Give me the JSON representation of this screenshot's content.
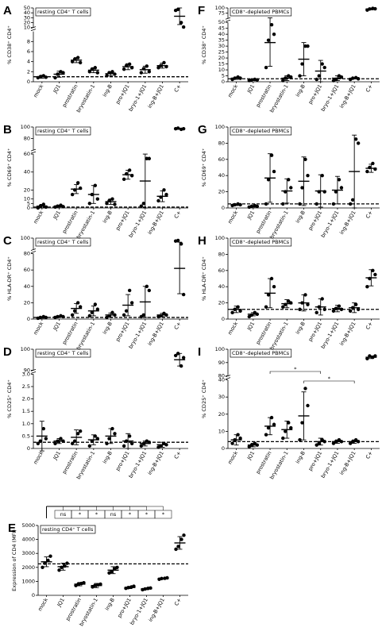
{
  "chart_data": [
    {
      "type": "dotplot",
      "label": "A",
      "title": "resting CD4⁺ T cells",
      "ylabel": "% CD38⁺ CD4⁺",
      "categories": [
        "mock",
        "JQ1",
        "prostratin",
        "bryostatin-1",
        "ing-B",
        "pro+JQ1",
        "bryo-1+JQ1",
        "ing-B+JQ1",
        "C+"
      ],
      "points": [
        [
          0.8,
          1,
          1.2,
          0.9
        ],
        [
          0.8,
          1.5,
          2,
          1.8
        ],
        [
          4,
          4.5,
          4.8,
          3.8
        ],
        [
          2,
          2.5,
          2.8,
          1.8
        ],
        [
          1.2,
          1.8,
          2,
          1.5
        ],
        [
          2.5,
          3.2,
          3.5,
          2.8
        ],
        [
          1.8,
          2.6,
          3.1,
          2
        ],
        [
          2.8,
          3.2,
          3.8,
          3
        ],
        [
          45,
          47,
          20,
          11
        ]
      ],
      "mean": [
        1,
        1.5,
        4.3,
        2.3,
        1.6,
        3,
        2.4,
        3.2,
        33
      ],
      "sd": [
        0.3,
        0.6,
        0.5,
        0.5,
        0.4,
        0.6,
        0.7,
        0.5,
        17
      ],
      "reference": 1,
      "segments": [
        {
          "ylim": [
            0,
            10
          ],
          "yticks": [
            0,
            2,
            4,
            6,
            8
          ]
        },
        {
          "ylim": [
            10,
            50
          ],
          "yticks": [
            10,
            20,
            30,
            40,
            50
          ]
        }
      ]
    },
    {
      "type": "dotplot",
      "label": "B",
      "title": "resting CD4⁺ T cells",
      "ylabel": "% CD69⁺ CD4⁺",
      "categories": [
        "mock",
        "JQ1",
        "prostratin",
        "bryostatin-1",
        "ing-B",
        "pro+JQ1",
        "bryo-1+JQ1",
        "ing-B+JQ1",
        "C+"
      ],
      "points": [
        [
          0,
          2,
          4,
          1
        ],
        [
          1,
          2,
          3,
          1.5
        ],
        [
          15,
          20,
          28,
          22
        ],
        [
          5,
          15,
          25,
          10
        ],
        [
          5,
          8,
          10,
          4
        ],
        [
          32,
          38,
          42,
          36
        ],
        [
          2,
          5,
          55,
          55
        ],
        [
          8,
          12,
          20,
          15
        ],
        [
          97,
          98,
          96,
          97
        ]
      ],
      "mean": [
        2,
        2,
        21,
        15,
        7,
        37,
        30,
        13,
        97
      ],
      "sd": [
        2,
        1,
        5,
        10,
        3,
        5,
        30,
        6,
        1
      ],
      "reference": 1,
      "segments": [
        {
          "ylim": [
            0,
            60
          ],
          "yticks": [
            0,
            5,
            10,
            20,
            40,
            60
          ]
        },
        {
          "ylim": [
            60,
            100
          ],
          "yticks": [
            80,
            100
          ]
        }
      ]
    },
    {
      "type": "dotplot",
      "label": "C",
      "title": "resting CD4⁺ T cells",
      "ylabel": "% HLA-DR⁺ CD4⁺",
      "categories": [
        "mock",
        "JQ1",
        "prostratin",
        "bryostatin-1",
        "ing-B",
        "pro+JQ1",
        "bryo-1+JQ1",
        "ing-B+JQ1",
        "C+"
      ],
      "points": [
        [
          1,
          2,
          3,
          2
        ],
        [
          2,
          3,
          4,
          3
        ],
        [
          5,
          10,
          20,
          15
        ],
        [
          4,
          8,
          18,
          12
        ],
        [
          2,
          4,
          8,
          5
        ],
        [
          5,
          10,
          35,
          20
        ],
        [
          3,
          5,
          40,
          35
        ],
        [
          3,
          4,
          7,
          5
        ],
        [
          95,
          96,
          90,
          30
        ]
      ],
      "mean": [
        2,
        3,
        13,
        10,
        5,
        17,
        21,
        5,
        62
      ],
      "sd": [
        1,
        1,
        6,
        6,
        2.5,
        13,
        19,
        2,
        31
      ],
      "reference": 2,
      "segments": [
        {
          "ylim": [
            0,
            80
          ],
          "yticks": [
            0,
            20,
            40,
            60,
            80
          ]
        },
        {
          "ylim": [
            80,
            100
          ],
          "yticks": [
            100
          ]
        }
      ]
    },
    {
      "type": "dotplot",
      "label": "D",
      "title": "resting CD4⁺ T cells",
      "ylabel": "% CD25⁺ CD4⁺",
      "categories": [
        "mock",
        "JQ1",
        "prostratin",
        "bryostatin-1",
        "ing-B",
        "pro+JQ1",
        "bryo-1+JQ1",
        "ing-B+JQ1",
        "C+"
      ],
      "points": [
        [
          0.2,
          0.3,
          0.8,
          0.4
        ],
        [
          0.2,
          0.3,
          0.4,
          0.3
        ],
        [
          0.2,
          0.3,
          0.6,
          0.7
        ],
        [
          0.1,
          0.3,
          0.5,
          0.4
        ],
        [
          0.2,
          0.4,
          0.8,
          0.6
        ],
        [
          0.1,
          0.3,
          0.5,
          0.2
        ],
        [
          0.1,
          0.2,
          0.3,
          0.25
        ],
        [
          0.05,
          0.1,
          0.2,
          0.15
        ],
        [
          97,
          98,
          92,
          96
        ]
      ],
      "mean": [
        0.5,
        0.3,
        0.45,
        0.35,
        0.5,
        0.3,
        0.2,
        0.15,
        95
      ],
      "sd": [
        0.6,
        0.1,
        0.3,
        0.2,
        0.3,
        0.3,
        0.1,
        0.1,
        3
      ],
      "reference": 0.25,
      "segments": [
        {
          "ylim": [
            0,
            3
          ],
          "yticks": [
            0,
            0.5,
            {
              "value": 1,
              "label": "1.0"
            },
            1.5,
            {
              "value": 2,
              "label": "2.0"
            },
            2.5,
            {
              "value": 3,
              "label": "3.0"
            }
          ]
        },
        {
          "ylim": [
            90,
            100
          ],
          "yticks": [
            90,
            100
          ]
        }
      ]
    },
    {
      "type": "dotplot",
      "label": "E",
      "title": "resting CD4⁺ T cells",
      "ylabel": "Expression of CD4 (MFI)",
      "categories": [
        "mock",
        "JQ1",
        "prostratin",
        "bryostatin-1",
        "ing-B",
        "pro+JQ1",
        "bryo-1+JQ1",
        "ing-B+JQ1",
        "C+"
      ],
      "points": [
        [
          2000,
          2300,
          2500,
          2800
        ],
        [
          1800,
          2000,
          2100,
          2300
        ],
        [
          700,
          800,
          850,
          900
        ],
        [
          600,
          700,
          750,
          800
        ],
        [
          1600,
          1700,
          1900,
          2000
        ],
        [
          500,
          550,
          600,
          650
        ],
        [
          400,
          450,
          500,
          520
        ],
        [
          1150,
          1200,
          1220,
          1250
        ],
        [
          3300,
          3500,
          4000,
          4300
        ]
      ],
      "mean": [
        2400,
        2050,
        800,
        700,
        1800,
        560,
        470,
        1200,
        3750
      ],
      "sd": [
        350,
        250,
        120,
        150,
        250,
        80,
        70,
        50,
        450
      ],
      "reference": 2250,
      "segments": [
        {
          "ylim": [
            0,
            5000
          ],
          "yticks": [
            0,
            1000,
            2000,
            3000,
            4000,
            5000
          ]
        }
      ],
      "annotations": [
        {
          "text": "ns",
          "category": "JQ1"
        },
        {
          "text": "*",
          "category": "prostratin"
        },
        {
          "text": "*",
          "category": "bryostatin-1"
        },
        {
          "text": "ns",
          "category": "ing-B"
        },
        {
          "text": "*",
          "category": "pro+JQ1"
        },
        {
          "text": "*",
          "category": "bryo-1+JQ1"
        },
        {
          "text": "*",
          "category": "ing-B+JQ1"
        }
      ]
    },
    {
      "type": "dotplot",
      "label": "F",
      "title": "CD8⁺-depleted PBMCs",
      "ylabel": "% CD38⁺ CD4⁺",
      "categories": [
        "mock",
        "JQ1",
        "prostratin",
        "bryostatin-1",
        "ing-B",
        "pro+JQ1",
        "bryo-1+JQ1",
        "ing-B+JQ1",
        "C+"
      ],
      "points": [
        [
          2,
          3,
          4,
          3
        ],
        [
          1,
          1.5,
          2,
          1.5
        ],
        [
          12,
          35,
          48,
          40
        ],
        [
          1,
          3,
          5,
          4
        ],
        [
          5,
          15,
          30,
          30
        ],
        [
          2,
          5,
          15,
          12
        ],
        [
          1,
          2,
          5,
          4
        ],
        [
          2,
          3,
          3.5,
          2.5
        ],
        [
          90,
          95,
          98,
          96
        ]
      ],
      "mean": [
        3,
        1.5,
        33,
        3,
        19,
        9,
        3,
        2.8,
        95
      ],
      "sd": [
        1,
        0.5,
        20,
        2,
        14,
        9,
        2,
        0.5,
        4
      ],
      "reference": 2.5,
      "segments": [
        {
          "ylim": [
            0,
            50
          ],
          "yticks": [
            0,
            5,
            10,
            15,
            20,
            25,
            30,
            35,
            40,
            45,
            50
          ]
        },
        {
          "ylim": [
            50,
            100
          ],
          "yticks": [
            75,
            100
          ]
        }
      ]
    },
    {
      "type": "dotplot",
      "label": "G",
      "title": "CD8⁺-depleted PBMCs",
      "ylabel": "% CD69⁺ CD4⁺",
      "categories": [
        "mock",
        "JQ1",
        "prostratin",
        "bryostatin-1",
        "ing-B",
        "pro+JQ1",
        "bryo-1+JQ1",
        "ing-B+JQ1",
        "C+"
      ],
      "points": [
        [
          3,
          4,
          5,
          4
        ],
        [
          1,
          2,
          3,
          2
        ],
        [
          5,
          35,
          65,
          45
        ],
        [
          5,
          20,
          35,
          25
        ],
        [
          5,
          25,
          60,
          40
        ],
        [
          5,
          20,
          40,
          20
        ],
        [
          5,
          20,
          35,
          25
        ],
        [
          5,
          10,
          85,
          80
        ],
        [
          45,
          50,
          55,
          48
        ]
      ],
      "mean": [
        4,
        2,
        37,
        21,
        33,
        21,
        22,
        45,
        49
      ],
      "sd": [
        1,
        1,
        30,
        15,
        30,
        20,
        17,
        45,
        5
      ],
      "reference": 5,
      "segments": [
        {
          "ylim": [
            0,
            100
          ],
          "yticks": [
            0,
            20,
            40,
            60,
            80,
            100
          ]
        }
      ]
    },
    {
      "type": "dotplot",
      "label": "H",
      "title": "CD8⁺-depleted PBMCs",
      "ylabel": "% HLA-DR⁺ CD4⁺",
      "categories": [
        "mock",
        "JQ1",
        "prostratin",
        "bryostatin-1",
        "ing-B",
        "pro+JQ1",
        "bryo-1+JQ1",
        "ing-B+JQ1",
        "C+"
      ],
      "points": [
        [
          8,
          12,
          15,
          10
        ],
        [
          3,
          5,
          8,
          6
        ],
        [
          15,
          30,
          50,
          40
        ],
        [
          15,
          18,
          22,
          20
        ],
        [
          12,
          20,
          30,
          18
        ],
        [
          8,
          15,
          25,
          12
        ],
        [
          10,
          13,
          16,
          12
        ],
        [
          10,
          14,
          18,
          12
        ],
        [
          40,
          50,
          60,
          55
        ]
      ],
      "mean": [
        12,
        6,
        32,
        19,
        20,
        15,
        13,
        14,
        51
      ],
      "sd": [
        4,
        2,
        18,
        5,
        10,
        10,
        4,
        6,
        10
      ],
      "reference": 12,
      "segments": [
        {
          "ylim": [
            0,
            100
          ],
          "yticks": [
            0,
            20,
            40,
            60,
            80,
            100
          ]
        }
      ]
    },
    {
      "type": "dotplot",
      "label": "I",
      "title": "CD8⁺-depleted PBMCs",
      "ylabel": "% CD25⁺ CD4⁺",
      "categories": [
        "mock",
        "JQ1",
        "prostratin",
        "bryostatin-1",
        "ing-B",
        "pro+JQ1",
        "bryo-1+JQ1",
        "ing-B+JQ1",
        "C+"
      ],
      "points": [
        [
          3,
          5,
          8,
          6
        ],
        [
          1,
          2,
          3,
          2
        ],
        [
          8,
          12,
          18,
          14
        ],
        [
          6,
          10,
          15,
          12
        ],
        [
          5,
          15,
          35,
          25
        ],
        [
          2,
          3,
          5,
          4
        ],
        [
          3,
          4,
          5,
          4
        ],
        [
          3,
          4,
          5,
          4
        ],
        [
          93,
          95,
          94,
          95
        ]
      ],
      "mean": [
        5,
        2,
        13,
        11,
        19,
        4,
        4,
        4,
        94
      ],
      "sd": [
        3,
        1,
        5,
        5,
        14,
        2,
        1,
        1,
        1
      ],
      "reference": 4,
      "segments": [
        {
          "ylim": [
            0,
            40
          ],
          "yticks": [
            0,
            10,
            20,
            30,
            40
          ]
        },
        {
          "ylim": [
            80,
            100
          ],
          "yticks": [
            80,
            90,
            100
          ]
        }
      ],
      "annotations": [
        {
          "text": "*",
          "from": "prostratin",
          "to": "pro+JQ1"
        },
        {
          "text": "*",
          "from": "ing-B",
          "to": "ing-B+JQ1"
        }
      ]
    }
  ]
}
